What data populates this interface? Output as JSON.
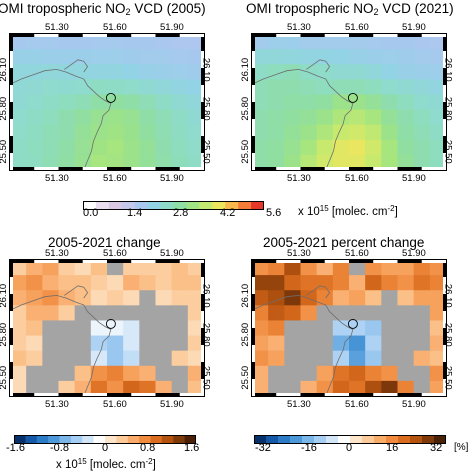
{
  "panels": [
    {
      "id": "no2_2005",
      "title_pre": "OMI tropospheric NO",
      "title_sub": "2",
      "title_post": " VCD (2005)",
      "scale": "no2",
      "grid": [
        [
          1.9,
          1.95,
          1.95,
          1.9,
          1.9,
          1.95,
          1.95,
          1.9,
          1.9,
          1.85,
          1.8,
          1.8
        ],
        [
          2.2,
          2.2,
          2.15,
          2.15,
          2.15,
          2.1,
          2.1,
          2.05,
          2.0,
          2.0,
          1.95,
          1.9
        ],
        [
          2.45,
          2.45,
          2.5,
          2.45,
          2.45,
          2.4,
          2.4,
          2.3,
          2.2,
          2.15,
          2.1,
          2.05
        ],
        [
          2.55,
          2.6,
          2.7,
          2.65,
          2.7,
          2.85,
          2.8,
          2.75,
          2.6,
          2.5,
          2.4,
          2.3
        ],
        [
          2.6,
          2.7,
          2.8,
          2.9,
          3.0,
          3.2,
          3.3,
          3.2,
          3.0,
          2.8,
          2.6,
          2.5
        ],
        [
          2.7,
          2.8,
          2.9,
          3.1,
          3.3,
          3.5,
          3.6,
          3.5,
          3.2,
          3.0,
          2.8,
          2.6
        ],
        [
          2.75,
          2.85,
          3.0,
          3.1,
          3.4,
          3.6,
          3.7,
          3.55,
          3.3,
          3.05,
          2.85,
          2.7
        ],
        [
          2.8,
          2.9,
          3.0,
          3.2,
          3.45,
          3.7,
          3.8,
          3.6,
          3.4,
          3.1,
          2.9,
          2.75
        ],
        [
          2.8,
          2.85,
          3.05,
          3.25,
          3.5,
          3.8,
          3.75,
          3.6,
          3.4,
          3.15,
          2.95,
          2.8
        ]
      ],
      "city_marker": "Doha"
    },
    {
      "id": "no2_2021",
      "title_pre": "OMI tropospheric NO",
      "title_sub": "2",
      "title_post": " VCD (2021)",
      "scale": "no2",
      "grid": [
        [
          2.0,
          2.1,
          2.1,
          2.0,
          2.0,
          2.0,
          2.0,
          1.95,
          1.9,
          1.9,
          1.85,
          1.8
        ],
        [
          2.5,
          2.5,
          2.45,
          2.4,
          2.35,
          2.3,
          2.2,
          2.15,
          2.1,
          2.05,
          2.0,
          1.95
        ],
        [
          2.8,
          2.9,
          3.0,
          2.8,
          2.75,
          2.6,
          2.6,
          2.5,
          2.3,
          2.2,
          2.15,
          2.1
        ],
        [
          3.0,
          3.1,
          3.1,
          3.0,
          2.9,
          3.0,
          3.0,
          2.9,
          2.7,
          2.6,
          2.5,
          2.4
        ],
        [
          3.0,
          3.1,
          3.2,
          3.2,
          3.3,
          3.6,
          3.6,
          3.4,
          3.1,
          2.9,
          2.7,
          2.6
        ],
        [
          3.1,
          3.2,
          3.3,
          3.4,
          3.6,
          3.9,
          4.0,
          3.8,
          3.4,
          3.1,
          2.9,
          2.7
        ],
        [
          3.1,
          3.2,
          3.4,
          3.6,
          3.9,
          4.2,
          4.3,
          4.1,
          3.6,
          3.2,
          3.0,
          2.8
        ],
        [
          3.2,
          3.3,
          3.5,
          3.8,
          4.2,
          4.5,
          4.6,
          4.3,
          3.8,
          3.3,
          3.1,
          2.9
        ],
        [
          3.2,
          3.3,
          3.6,
          4.0,
          4.3,
          4.5,
          4.5,
          4.2,
          3.8,
          3.4,
          3.1,
          2.9
        ]
      ],
      "city_marker": "Doha"
    },
    {
      "id": "change",
      "title_pre": "2005-2021 change",
      "title_sub": "",
      "title_post": "",
      "scale": "diff",
      "grid": [
        [
          0.3,
          0.5,
          0.6,
          0.3,
          0.2,
          0.4,
          null,
          0.3,
          0.3,
          0.3,
          0.4,
          0.3
        ],
        [
          0.6,
          0.7,
          0.5,
          0.4,
          0.4,
          0.3,
          0.2,
          0.5,
          0.4,
          0.3,
          0.4,
          0.4
        ],
        [
          0.5,
          0.6,
          0.7,
          0.5,
          0.4,
          0.2,
          0.3,
          0.2,
          null,
          0.2,
          0.3,
          0.3
        ],
        [
          0.3,
          0.5,
          0.5,
          0.3,
          null,
          null,
          null,
          null,
          null,
          null,
          null,
          0.3
        ],
        [
          0.3,
          0.4,
          null,
          null,
          null,
          -0.2,
          -0.2,
          -0.3,
          null,
          null,
          null,
          0.2
        ],
        [
          0.3,
          0.2,
          null,
          null,
          null,
          -0.5,
          -0.6,
          -0.3,
          null,
          null,
          null,
          0.3
        ],
        [
          0.4,
          0.3,
          null,
          null,
          null,
          -0.3,
          -0.6,
          -0.4,
          null,
          null,
          0.3,
          0.2
        ],
        [
          0.2,
          null,
          null,
          null,
          0.4,
          0.7,
          0.8,
          0.6,
          0.5,
          null,
          null,
          0.5
        ],
        [
          0.2,
          null,
          null,
          0.3,
          0.5,
          0.9,
          0.7,
          1.0,
          0.9,
          0.5,
          null,
          0.4
        ]
      ],
      "city_marker": "Doha"
    },
    {
      "id": "pct_change",
      "title_pre": "2005-2021 percent change",
      "title_sub": "",
      "title_post": "",
      "scale": "pct",
      "grid": [
        [
          14,
          16,
          24,
          14,
          10,
          16,
          null,
          14,
          12,
          12,
          16,
          14
        ],
        [
          26,
          26,
          20,
          18,
          18,
          16,
          10,
          20,
          16,
          14,
          18,
          16
        ],
        [
          22,
          24,
          28,
          20,
          16,
          10,
          12,
          8,
          null,
          8,
          12,
          12
        ],
        [
          16,
          22,
          20,
          14,
          null,
          null,
          null,
          null,
          null,
          null,
          null,
          12
        ],
        [
          14,
          16,
          null,
          null,
          null,
          -10,
          -10,
          -12,
          null,
          null,
          null,
          8
        ],
        [
          12,
          10,
          null,
          null,
          null,
          -16,
          -20,
          -10,
          null,
          null,
          null,
          10
        ],
        [
          14,
          12,
          null,
          null,
          null,
          -10,
          -18,
          -12,
          null,
          null,
          10,
          8
        ],
        [
          10,
          null,
          null,
          null,
          12,
          18,
          20,
          16,
          14,
          null,
          null,
          14
        ],
        [
          10,
          null,
          null,
          10,
          14,
          20,
          18,
          24,
          28,
          16,
          null,
          12
        ]
      ],
      "city_marker": "Doha"
    }
  ],
  "axes": {
    "lon_ticks": [
      "51.30",
      "51.60",
      "51.90"
    ],
    "lat_ticks": [
      "26.10",
      "25.80",
      "25.50"
    ]
  },
  "colorbars": {
    "no2": {
      "labels": [
        "0.0",
        "1.4",
        "2.8",
        "4.2",
        "5.6"
      ],
      "unit_pre": "x 10",
      "unit_exp": "15",
      "unit_post": " [molec. cm",
      "unit_exp2": "-2",
      "unit_end": "]",
      "colors": [
        "#ffffff",
        "#eaddee",
        "#d9c8e3",
        "#c6c8ea",
        "#aac7ef",
        "#93d3e6",
        "#8edcc8",
        "#8fdea5",
        "#9fe384",
        "#c3ea70",
        "#ebe65e",
        "#f7b94c",
        "#f67b38",
        "#e6382a"
      ]
    },
    "diff": {
      "labels": [
        "-1.6",
        "-0.8",
        "0",
        "0.8",
        "1.6"
      ],
      "unit_pre": "x 10",
      "unit_exp": "15",
      "unit_post": " [molec. cm",
      "unit_exp2": "-2",
      "unit_end": "]",
      "colors": [
        "#08306b",
        "#1458a6",
        "#2b7bc6",
        "#4c98d8",
        "#7bb6e8",
        "#a6cef2",
        "#d3e6f8",
        "#ffffff",
        "#fde5cc",
        "#fccb9a",
        "#f9ab6a",
        "#f08a3e",
        "#d96c1e",
        "#b45210",
        "#7f3a0a",
        "#4a2106"
      ]
    },
    "pct": {
      "labels": [
        "-32",
        "-16",
        "0",
        "16",
        "32"
      ],
      "unit_pre": "[%]"
    }
  },
  "colors": {
    "masked": "#a4a4a4",
    "coast": "#6e6e6e",
    "border": "#000000"
  }
}
